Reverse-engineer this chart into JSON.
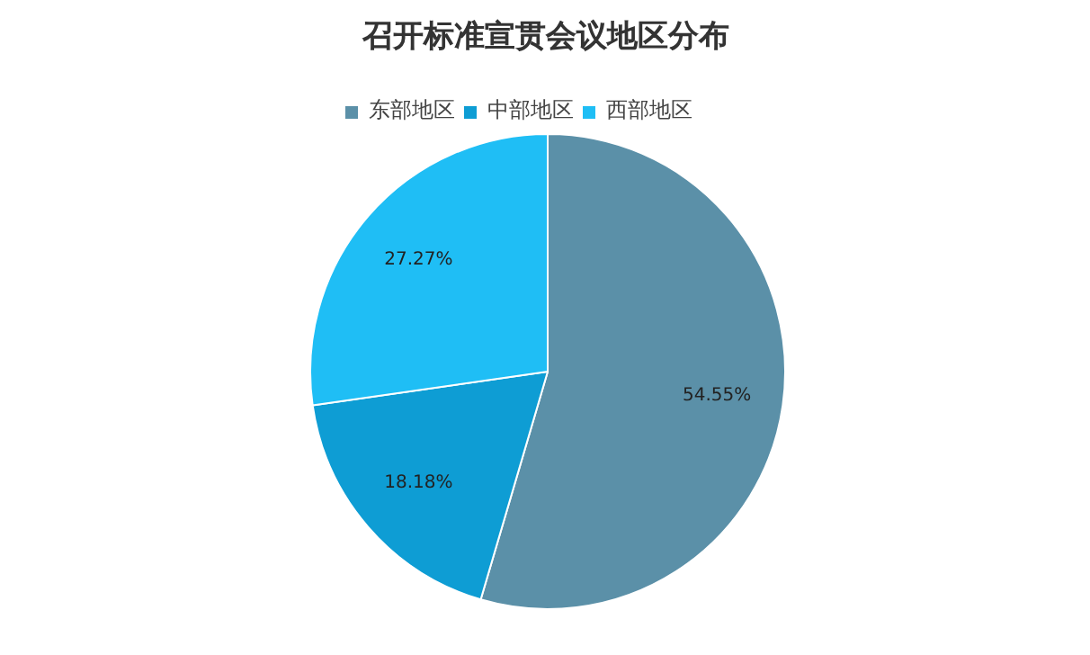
{
  "chart_data": {
    "type": "pie",
    "title": "召开标准宣贯会议地区分布",
    "categories": [
      "东部地区",
      "中部地区",
      "西部地区"
    ],
    "values": [
      54.55,
      18.18,
      27.27
    ],
    "value_labels": [
      "54.55%",
      "18.18%",
      "27.27%"
    ],
    "colors": [
      "#5b90a8",
      "#0e9dd4",
      "#1fbef5"
    ],
    "legend": "top"
  }
}
